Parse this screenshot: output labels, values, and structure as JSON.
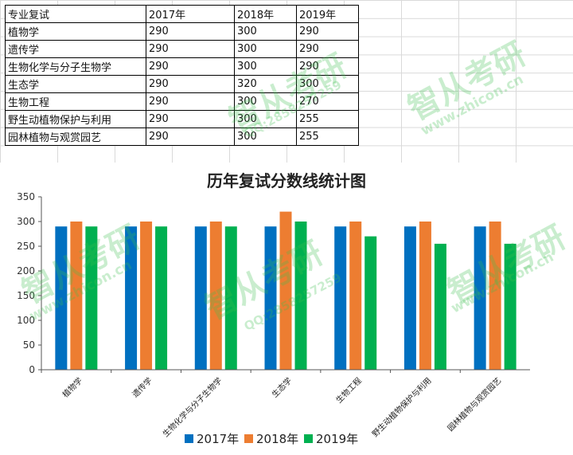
{
  "table": {
    "header": [
      "专业复试",
      "2017年",
      "2018年",
      "2019年"
    ],
    "rows": [
      [
        "植物学",
        "290",
        "300",
        "290"
      ],
      [
        "遗传学",
        "290",
        "300",
        "290"
      ],
      [
        "生物化学与分子生物学",
        "290",
        "300",
        "290"
      ],
      [
        "生态学",
        "290",
        "320",
        "300"
      ],
      [
        "生物工程",
        "290",
        "300",
        "270"
      ],
      [
        "野生动植物保护与利用",
        "290",
        "300",
        "255"
      ],
      [
        "园林植物与观赏园艺",
        "290",
        "300",
        "255"
      ]
    ]
  },
  "watermark": {
    "text": "智从考研",
    "url": "www.zhicon.cn",
    "phone": "QQ:2858257259"
  },
  "colors": {
    "s2017": "#0070c0",
    "s2018": "#ed7d31",
    "s2019": "#00b050"
  },
  "chart_data": {
    "type": "bar",
    "title": "历年复试分数线统计图",
    "categories": [
      "植物学",
      "遗传学",
      "生物化学与分子生物学",
      "生态学",
      "生物工程",
      "野生动植物保护与利用",
      "园林植物与观赏园艺"
    ],
    "series": [
      {
        "name": "2017年",
        "values": [
          290,
          290,
          290,
          290,
          290,
          290,
          290
        ]
      },
      {
        "name": "2018年",
        "values": [
          300,
          300,
          300,
          320,
          300,
          300,
          300
        ]
      },
      {
        "name": "2019年",
        "values": [
          290,
          290,
          290,
          300,
          270,
          255,
          255
        ]
      }
    ],
    "ylim": [
      0,
      350
    ],
    "yticks": [
      "0",
      "50",
      "100",
      "150",
      "200",
      "250",
      "300",
      "350"
    ],
    "grid": false,
    "legend": "bottom"
  }
}
